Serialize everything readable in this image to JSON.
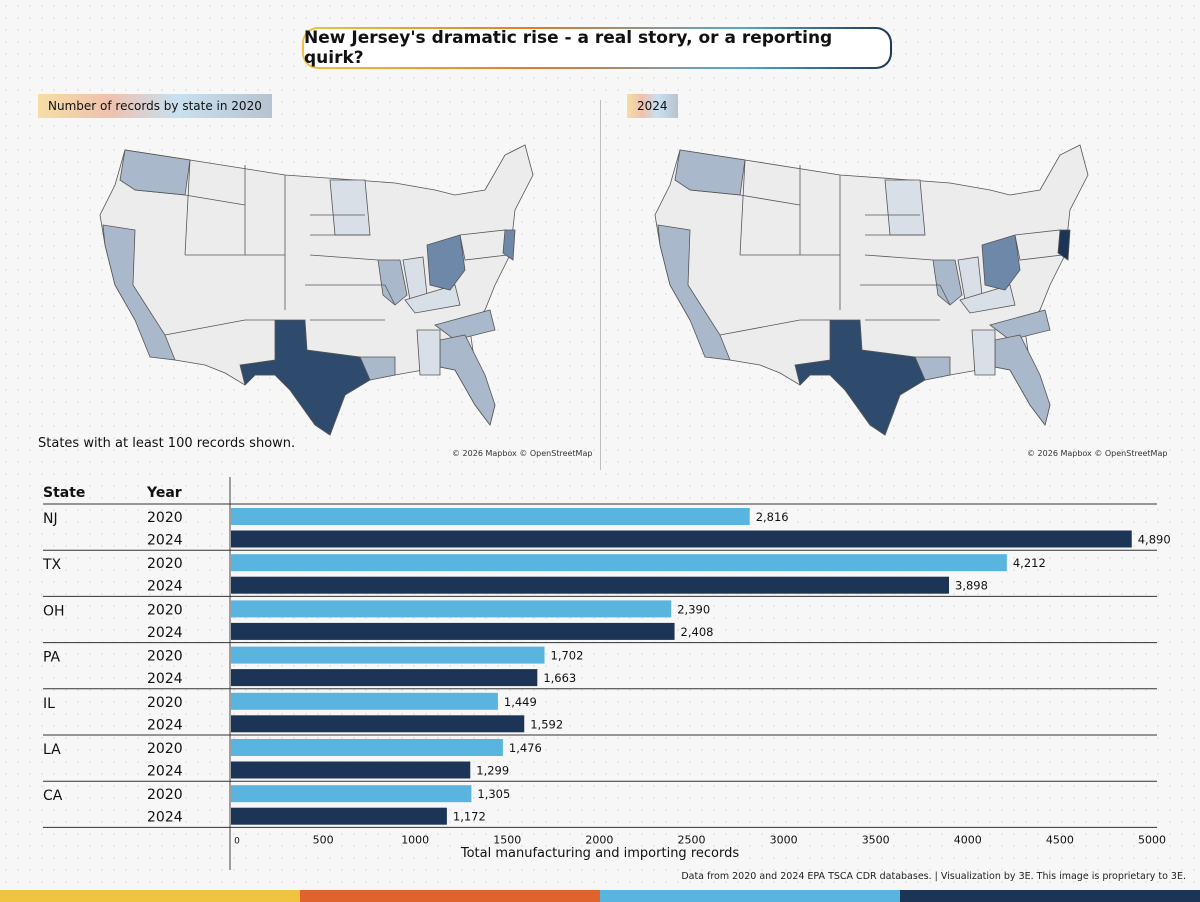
{
  "title": "New Jersey's dramatic rise - a real story, or a reporting quirk?",
  "map_left": {
    "label": "Number of records by state in 2020",
    "attribution": "© 2026 Mapbox © OpenStreetMap"
  },
  "map_right": {
    "label": "2024",
    "attribution": "© 2026 Mapbox © OpenStreetMap"
  },
  "note": "States with at least 100 records shown.",
  "source": "Data from 2020 and 2024 EPA TSCA CDR databases. | Visualization by 3E. This image is proprietary to 3E.",
  "colors": {
    "y2020": "#5ab4e0",
    "y2024": "#1c3557",
    "map_dark": "#2e4b6e",
    "map_mid": "#6d88a8",
    "map_light": "#a9b8cb",
    "map_pale": "#d9dfe7",
    "map_base": "#ececec",
    "bottom": [
      "#f0c340",
      "#e0622c",
      "#5ab4e0",
      "#1c3557"
    ]
  },
  "chart_data": {
    "type": "bar",
    "orientation": "horizontal",
    "column_headers": [
      "State",
      "Year"
    ],
    "categories": [
      "NJ",
      "TX",
      "OH",
      "PA",
      "IL",
      "LA",
      "CA"
    ],
    "years": [
      "2020",
      "2024"
    ],
    "series": [
      {
        "name": "2020",
        "values": [
          2816,
          4212,
          2390,
          1702,
          1449,
          1476,
          1305
        ]
      },
      {
        "name": "2024",
        "values": [
          4890,
          3898,
          2408,
          1663,
          1592,
          1299,
          1172
        ]
      }
    ],
    "value_labels": {
      "2020": [
        "2,816",
        "4,212",
        "2,390",
        "1,702",
        "1,449",
        "1,476",
        "1,305"
      ],
      "2024": [
        "4,890",
        "3,898",
        "2,408",
        "1,663",
        "1,592",
        "1,299",
        "1,172"
      ]
    },
    "xlim": [
      0,
      5000
    ],
    "xticks": [
      0,
      500,
      1000,
      1500,
      2000,
      2500,
      3000,
      3500,
      4000,
      4500,
      5000
    ],
    "xlabel": "Total manufacturing and importing records"
  }
}
